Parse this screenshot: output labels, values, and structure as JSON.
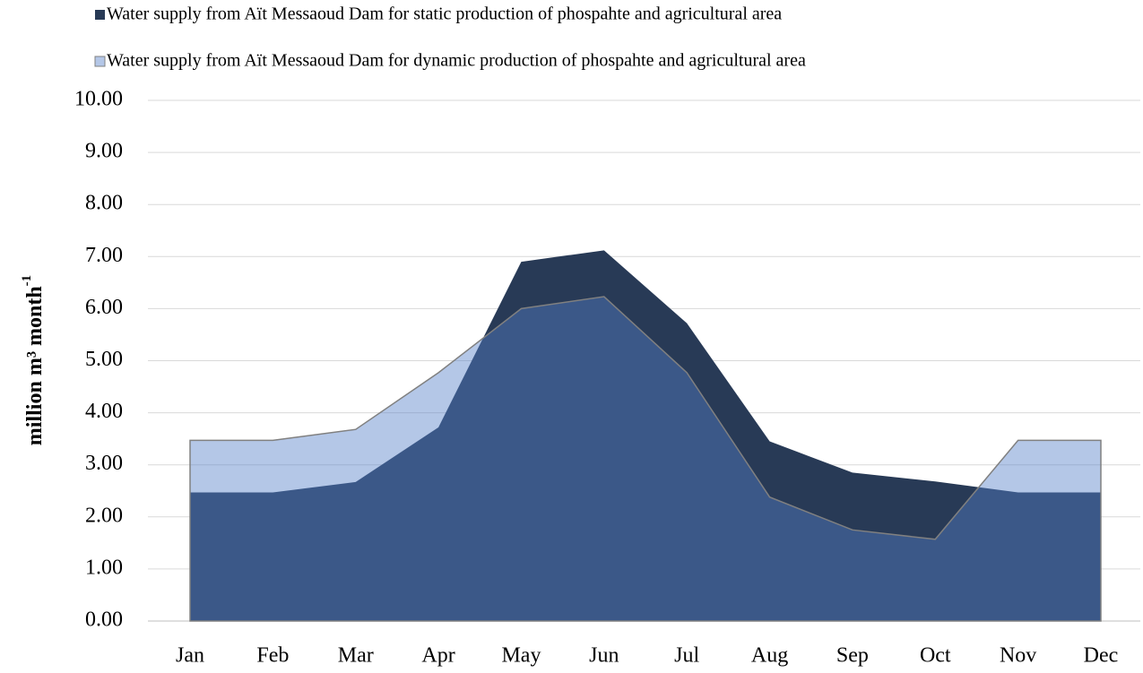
{
  "chart_data": {
    "type": "area",
    "y_label": "million m³ month",
    "y_label_sup": "-1",
    "categories": [
      "Jan",
      "Feb",
      "Mar",
      "Apr",
      "May",
      "Jun",
      "Jul",
      "Aug",
      "Sep",
      "Oct",
      "Nov",
      "Dec"
    ],
    "series": [
      {
        "name": "Water supply from Aït Messaoud Dam for static production of phospahte and agricultural area",
        "color": "#283a56",
        "opacity": 1,
        "values": [
          2.47,
          2.47,
          2.67,
          3.72,
          6.9,
          7.12,
          5.72,
          3.45,
          2.85,
          2.68,
          2.47,
          2.47
        ]
      },
      {
        "name": "Water supply from Aït Messaoud Dam for dynamic production of phospahte and agricultural area",
        "color": "#557fc8",
        "opacity": 0.44,
        "values": [
          3.47,
          3.47,
          3.68,
          4.77,
          6.0,
          6.23,
          4.77,
          2.38,
          1.75,
          1.57,
          3.47,
          3.47
        ]
      }
    ],
    "ylim": [
      0,
      10
    ],
    "yticks": [
      {
        "value": 0,
        "label": "0.00"
      },
      {
        "value": 1,
        "label": "1.00"
      },
      {
        "value": 2,
        "label": "2.00"
      },
      {
        "value": 3,
        "label": "3.00"
      },
      {
        "value": 4,
        "label": "4.00"
      },
      {
        "value": 5,
        "label": "5.00"
      },
      {
        "value": 6,
        "label": "6.00"
      },
      {
        "value": 7,
        "label": "7.00"
      },
      {
        "value": 8,
        "label": "8.00"
      },
      {
        "value": 9,
        "label": "9.00"
      },
      {
        "value": 10,
        "label": "10.00"
      }
    ],
    "grid": true,
    "legend": "top"
  }
}
